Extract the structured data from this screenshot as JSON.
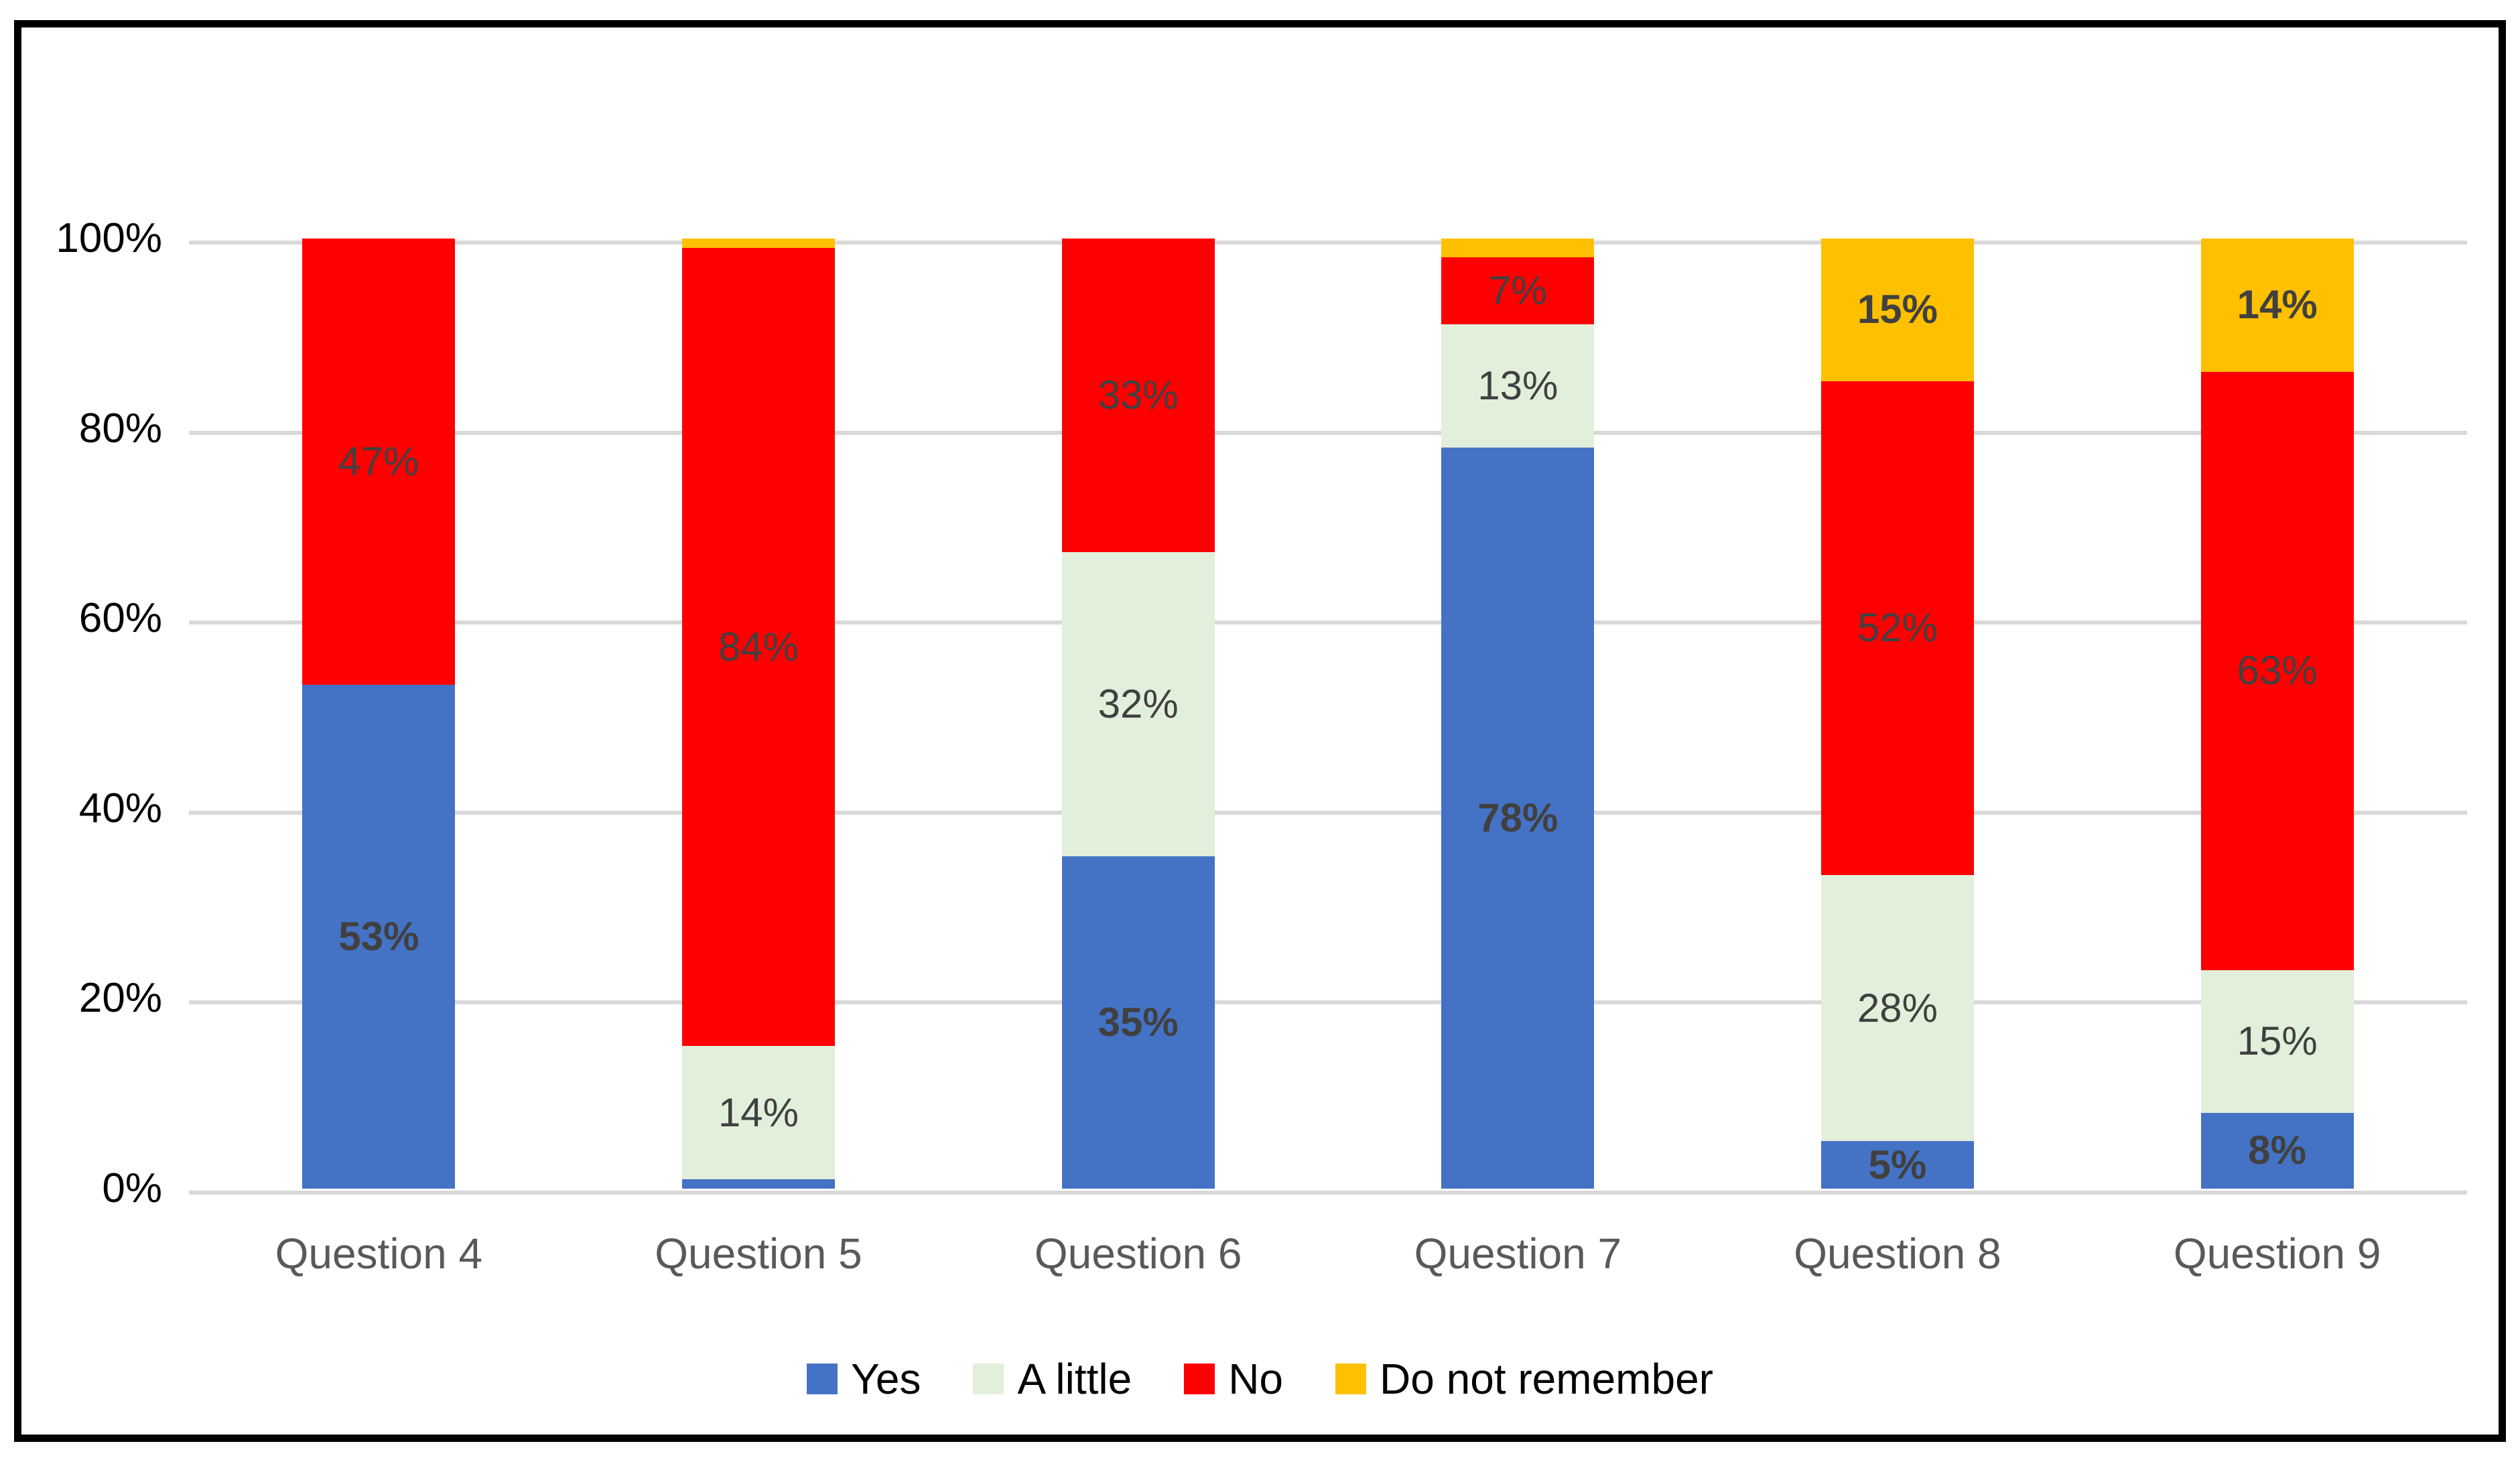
{
  "chart_data": {
    "type": "bar",
    "subtype": "stacked-100-column",
    "title": "",
    "xlabel": "",
    "ylabel": "",
    "categories": [
      "Question 4",
      "Question 5",
      "Question 6",
      "Question 7",
      "Question 8",
      "Question 9"
    ],
    "series": [
      {
        "name": "Yes",
        "color": "#4472C4",
        "values": [
          53,
          1,
          35,
          78,
          5,
          8
        ],
        "data_labels": [
          "53%",
          "",
          "35%",
          "78%",
          "5%",
          "8%"
        ],
        "bold_labels": true
      },
      {
        "name": "A little",
        "color": "#E2EFDA",
        "values": [
          0,
          14,
          32,
          13,
          28,
          15
        ],
        "data_labels": [
          "",
          "14%",
          "32%",
          "13%",
          "28%",
          "15%"
        ],
        "bold_labels": false
      },
      {
        "name": "No",
        "color": "#FF0000",
        "values": [
          47,
          84,
          33,
          7,
          52,
          63
        ],
        "data_labels": [
          "47%",
          "84%",
          "33%",
          "7%",
          "52%",
          "63%"
        ],
        "bold_labels": false
      },
      {
        "name": "Do not remember",
        "color": "#FFC000",
        "values": [
          0,
          1,
          0,
          2,
          15,
          14
        ],
        "data_labels": [
          "",
          "",
          "",
          "",
          "15%",
          "14%"
        ],
        "bold_labels": true
      }
    ],
    "y_axis": {
      "ticks": [
        "0%",
        "20%",
        "40%",
        "60%",
        "80%",
        "100%"
      ],
      "tick_values": [
        0,
        20,
        40,
        60,
        80,
        100
      ],
      "min": 0,
      "max": 100,
      "grid": true
    },
    "legend": {
      "position": "bottom",
      "items": [
        "Yes",
        "A little",
        "No",
        "Do not remember"
      ]
    }
  },
  "colors": {
    "gridline": "#D9D9D9",
    "data_label": "#404040",
    "category_label": "#595959",
    "axis_label": "#000000",
    "frame_border": "#000000",
    "background": "#FFFFFF"
  }
}
